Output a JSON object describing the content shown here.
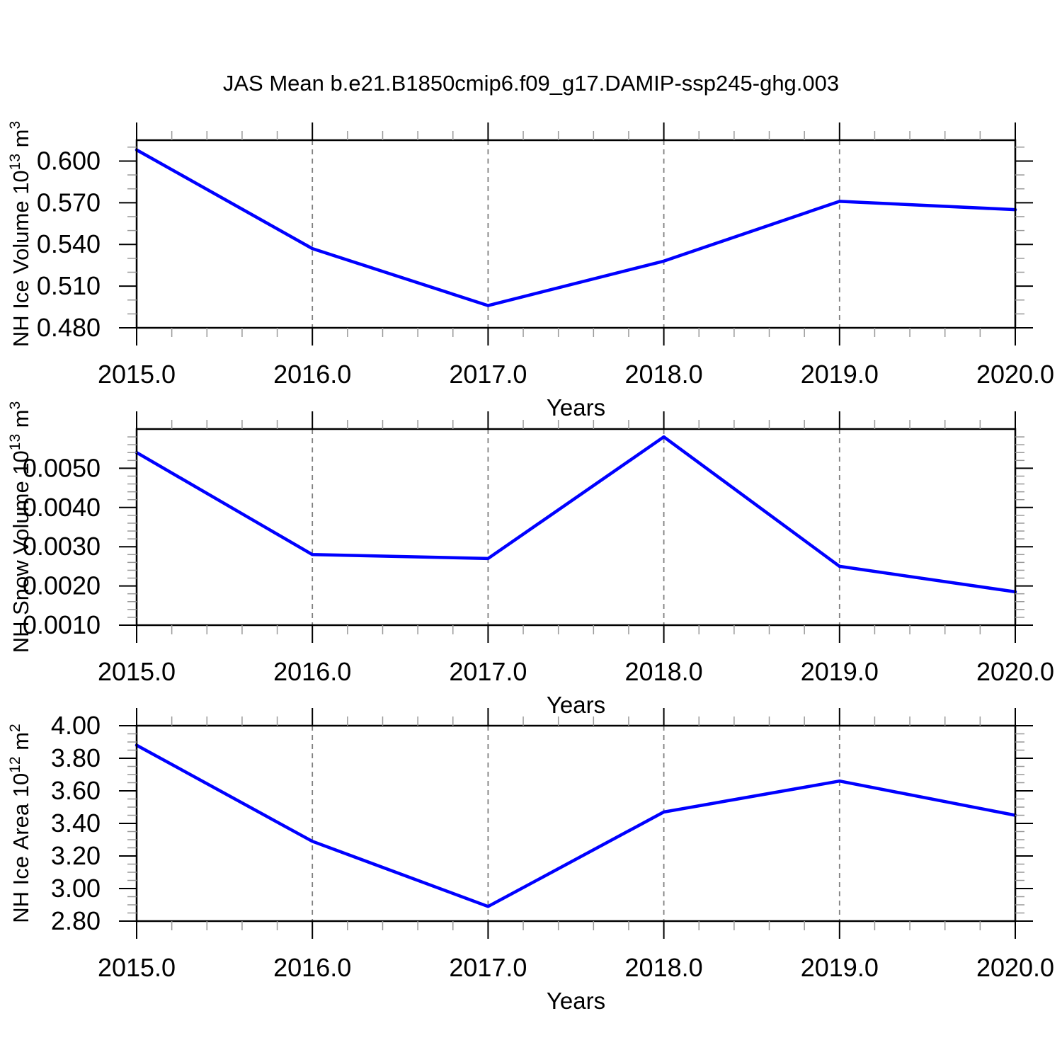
{
  "title": "JAS Mean b.e21.B1850cmip6.f09_g17.DAMIP-ssp245-ghg.003",
  "colors": {
    "line": "#0000ff",
    "axis": "#000000",
    "minor_tick": "#999999",
    "grid": "#808080",
    "text": "#000000",
    "background": "#ffffff"
  },
  "xaxis": {
    "label": "Years",
    "xlim": [
      2015,
      2020
    ],
    "major_ticks": [
      2015,
      2016,
      2017,
      2018,
      2019,
      2020
    ],
    "tick_labels": [
      "2015.0",
      "2016.0",
      "2017.0",
      "2018.0",
      "2019.0",
      "2020.0"
    ],
    "minor_step": 0.2,
    "grid_years": [
      2016,
      2017,
      2018,
      2019
    ]
  },
  "chart_data": [
    {
      "type": "line",
      "name": "nh-ice-volume",
      "title": "",
      "ylabel": "NH Ice Volume 10^13 m^3",
      "ylabel_parts": [
        {
          "t": "NH Ice Volume 10"
        },
        {
          "sup": "13"
        },
        {
          "t": " m"
        },
        {
          "sup": "3"
        }
      ],
      "xlabel": "Years",
      "x": [
        2015,
        2016,
        2017,
        2018,
        2019,
        2020
      ],
      "values": [
        0.608,
        0.537,
        0.496,
        0.528,
        0.571,
        0.565
      ],
      "ylim": [
        0.48,
        0.615
      ],
      "ytick_values": [
        0.48,
        0.51,
        0.54,
        0.57,
        0.6
      ],
      "ytick_labels": [
        "0.480",
        "0.510",
        "0.540",
        "0.570",
        "0.600"
      ],
      "yminor_step": 0.01,
      "grid": "vertical-dashed",
      "legend": "none"
    },
    {
      "type": "line",
      "name": "nh-snow-volume",
      "title": "",
      "ylabel": "NH Snow Volume 10^13 m^3",
      "ylabel_parts": [
        {
          "t": "NH Snow Volume 10"
        },
        {
          "sup": "13"
        },
        {
          "t": " m"
        },
        {
          "sup": "3"
        }
      ],
      "xlabel": "Years",
      "x": [
        2015,
        2016,
        2017,
        2018,
        2019,
        2020
      ],
      "values": [
        0.0054,
        0.0028,
        0.0027,
        0.0058,
        0.0025,
        0.00185
      ],
      "ylim": [
        0.001,
        0.006
      ],
      "ytick_values": [
        0.001,
        0.002,
        0.003,
        0.004,
        0.005
      ],
      "ytick_labels": [
        "0.0010",
        "0.0020",
        "0.0030",
        "0.0040",
        "0.0050"
      ],
      "yminor_step": 0.0002,
      "grid": "vertical-dashed",
      "legend": "none"
    },
    {
      "type": "line",
      "name": "nh-ice-area",
      "title": "",
      "ylabel": "NH Ice Area 10^12 m^2",
      "ylabel_parts": [
        {
          "t": "NH Ice Area 10"
        },
        {
          "sup": "12"
        },
        {
          "t": " m"
        },
        {
          "sup": "2"
        }
      ],
      "xlabel": "Years",
      "x": [
        2015,
        2016,
        2017,
        2018,
        2019,
        2020
      ],
      "values": [
        3.88,
        3.29,
        2.89,
        3.47,
        3.66,
        3.45
      ],
      "ylim": [
        2.8,
        4.0
      ],
      "ytick_values": [
        2.8,
        3.0,
        3.2,
        3.4,
        3.6,
        3.8,
        4.0
      ],
      "ytick_labels": [
        "2.80",
        "3.00",
        "3.20",
        "3.40",
        "3.60",
        "3.80",
        "4.00"
      ],
      "yminor_step": 0.05,
      "grid": "vertical-dashed",
      "legend": "none"
    }
  ]
}
